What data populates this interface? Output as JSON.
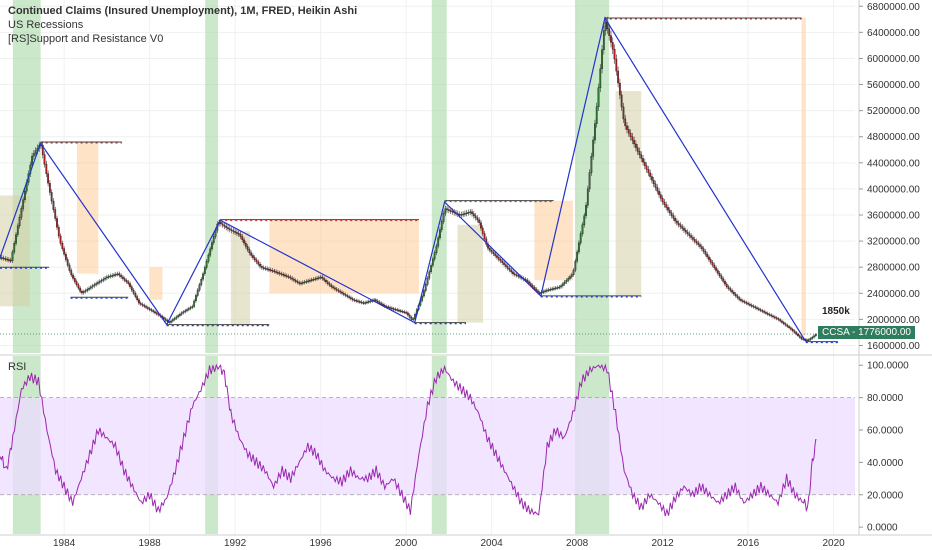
{
  "legend": {
    "title": "Continued Claims (Insured Unemployment), 1M, FRED, Heikin Ashi",
    "line2": "US Recessions",
    "line3": "[RS]Support and Resistance V0"
  },
  "rsi_label": "RSI",
  "annotation": "1850k",
  "price_tag": {
    "symbol": "CCSA",
    "value": "1776000.00"
  },
  "colors": {
    "up": "#2e7d32",
    "down": "#b71c1c",
    "zigzag": "#2233cc",
    "recession": "#a8d8a8",
    "rsi_line": "#9c27b0",
    "rsi_band": "#ecdcff",
    "sr_fill": "#ffcc99",
    "sr_fill2": "#d6cfa6",
    "price_tag": "#2e7d5e"
  },
  "chart_data": [
    {
      "type": "candlestick",
      "title": "Continued Claims (Insured Unemployment), 1M, FRED, Heikin Ashi",
      "price_axis": {
        "ticks": [
          "6800000.00",
          "6400000.00",
          "6000000.00",
          "5600000.00",
          "5200000.00",
          "4800000.00",
          "4400000.00",
          "4000000.00",
          "3600000.00",
          "3200000.00",
          "2800000.00",
          "2400000.00",
          "2000000.00",
          "1600000.00"
        ],
        "ylim": [
          1500000,
          6850000
        ]
      },
      "x_axis": {
        "ticks": [
          "1984",
          "1988",
          "1992",
          "1996",
          "2000",
          "2004",
          "2008",
          "2012",
          "2016",
          "2020"
        ],
        "xlim": [
          1981.0,
          2021.0
        ]
      },
      "close_series": [
        [
          1981.0,
          2950000
        ],
        [
          1981.5,
          2900000
        ],
        [
          1982.0,
          3700000
        ],
        [
          1982.5,
          4500000
        ],
        [
          1982.9,
          4700000
        ],
        [
          1983.3,
          4000000
        ],
        [
          1983.8,
          3200000
        ],
        [
          1984.3,
          2700000
        ],
        [
          1984.8,
          2400000
        ],
        [
          1985.5,
          2550000
        ],
        [
          1986.0,
          2650000
        ],
        [
          1986.5,
          2700000
        ],
        [
          1987.0,
          2550000
        ],
        [
          1987.5,
          2250000
        ],
        [
          1988.0,
          2150000
        ],
        [
          1988.5,
          2050000
        ],
        [
          1988.9,
          1950000
        ],
        [
          1989.5,
          2100000
        ],
        [
          1990.0,
          2200000
        ],
        [
          1990.5,
          2700000
        ],
        [
          1991.2,
          3500000
        ],
        [
          1991.6,
          3400000
        ],
        [
          1992.2,
          3300000
        ],
        [
          1992.7,
          3000000
        ],
        [
          1993.2,
          2800000
        ],
        [
          1993.7,
          2750000
        ],
        [
          1994.5,
          2650000
        ],
        [
          1995.0,
          2550000
        ],
        [
          1995.5,
          2600000
        ],
        [
          1996.0,
          2650000
        ],
        [
          1996.5,
          2500000
        ],
        [
          1997.0,
          2400000
        ],
        [
          1997.5,
          2300000
        ],
        [
          1998.0,
          2250000
        ],
        [
          1998.5,
          2300000
        ],
        [
          1999.0,
          2200000
        ],
        [
          1999.5,
          2150000
        ],
        [
          2000.0,
          2100000
        ],
        [
          2000.3,
          1980000
        ],
        [
          2000.8,
          2400000
        ],
        [
          2001.4,
          3100000
        ],
        [
          2001.8,
          3700000
        ],
        [
          2002.5,
          3600000
        ],
        [
          2003.0,
          3650000
        ],
        [
          2003.4,
          3500000
        ],
        [
          2003.8,
          3100000
        ],
        [
          2004.4,
          2900000
        ],
        [
          2005.0,
          2700000
        ],
        [
          2005.6,
          2600000
        ],
        [
          2006.2,
          2400000
        ],
        [
          2006.6,
          2450000
        ],
        [
          2007.2,
          2500000
        ],
        [
          2007.8,
          2700000
        ],
        [
          2008.4,
          3700000
        ],
        [
          2008.9,
          5200000
        ],
        [
          2009.3,
          6600000
        ],
        [
          2009.7,
          6100000
        ],
        [
          2010.2,
          5000000
        ],
        [
          2010.8,
          4600000
        ],
        [
          2011.4,
          4200000
        ],
        [
          2012.0,
          3800000
        ],
        [
          2012.6,
          3500000
        ],
        [
          2013.2,
          3300000
        ],
        [
          2013.8,
          3100000
        ],
        [
          2014.4,
          2800000
        ],
        [
          2015.0,
          2500000
        ],
        [
          2015.6,
          2300000
        ],
        [
          2016.2,
          2200000
        ],
        [
          2016.8,
          2100000
        ],
        [
          2017.4,
          2000000
        ],
        [
          2018.0,
          1850000
        ],
        [
          2018.5,
          1700000
        ],
        [
          2018.8,
          1680000
        ],
        [
          2019.2,
          1776000
        ]
      ],
      "zigzag": [
        [
          1981.0,
          2950000
        ],
        [
          1982.9,
          4700000
        ],
        [
          1988.8,
          1920000
        ],
        [
          1991.3,
          3520000
        ],
        [
          2000.4,
          1950000
        ],
        [
          2001.8,
          3800000
        ],
        [
          2006.3,
          2360000
        ],
        [
          2009.3,
          6620000
        ],
        [
          2018.7,
          1660000
        ]
      ],
      "recessions": [
        [
          1981.6,
          1982.9
        ],
        [
          1990.6,
          1991.2
        ],
        [
          2001.2,
          2001.9
        ],
        [
          2007.9,
          2009.5
        ]
      ],
      "resistance_levels": [
        {
          "y": 4720000,
          "x1": 1982.9,
          "x2": 1986.7
        },
        {
          "y": 3530000,
          "x1": 1991.3,
          "x2": 2000.6
        },
        {
          "y": 3820000,
          "x1": 2001.8,
          "x2": 2006.9
        },
        {
          "y": 6620000,
          "x1": 2009.3,
          "x2": 2018.5
        }
      ],
      "support_levels": [
        {
          "y": 2800000,
          "x1": 1981.0,
          "x2": 1983.3
        },
        {
          "y": 2340000,
          "x1": 1984.3,
          "x2": 1987.0
        },
        {
          "y": 1920000,
          "x1": 1988.8,
          "x2": 1993.6
        },
        {
          "y": 1950000,
          "x1": 2000.4,
          "x2": 2002.8
        },
        {
          "y": 2360000,
          "x1": 2006.3,
          "x2": 2011.0
        },
        {
          "y": 1660000,
          "x1": 2018.7,
          "x2": 2020.2
        }
      ],
      "sr_zones": [
        {
          "x1": 1981.0,
          "x2": 1982.4,
          "y1": 2200000,
          "y2": 3900000,
          "kind": "2"
        },
        {
          "x1": 1984.6,
          "x2": 1985.6,
          "y1": 2700000,
          "y2": 4720000,
          "kind": "1"
        },
        {
          "x1": 1988.0,
          "x2": 1988.6,
          "y1": 2300000,
          "y2": 2800000,
          "kind": "1"
        },
        {
          "x1": 1991.8,
          "x2": 1992.7,
          "y1": 1920000,
          "y2": 3350000,
          "kind": "2"
        },
        {
          "x1": 1993.6,
          "x2": 2000.6,
          "y1": 2400000,
          "y2": 3530000,
          "kind": "1"
        },
        {
          "x1": 2002.4,
          "x2": 2003.6,
          "y1": 1950000,
          "y2": 3450000,
          "kind": "2"
        },
        {
          "x1": 2006.0,
          "x2": 2007.8,
          "y1": 2600000,
          "y2": 3820000,
          "kind": "1"
        },
        {
          "x1": 2009.8,
          "x2": 2011.0,
          "y1": 2360000,
          "y2": 5500000,
          "kind": "2"
        },
        {
          "x1": 2018.5,
          "x2": 2018.7,
          "y1": 1750000,
          "y2": 6620000,
          "kind": "1"
        }
      ],
      "last_value": 1776000
    },
    {
      "type": "line",
      "title": "RSI",
      "y_axis": {
        "ticks": [
          "100.0000",
          "80.0000",
          "60.0000",
          "40.0000",
          "20.0000",
          "0.0000"
        ],
        "ylim": [
          -3,
          102
        ]
      },
      "band": [
        20,
        80
      ],
      "series": [
        {
          "values": [
            [
              1981.0,
              45
            ],
            [
              1981.3,
              35
            ],
            [
              1981.6,
              55
            ],
            [
              1982.0,
              85
            ],
            [
              1982.4,
              93
            ],
            [
              1982.8,
              90
            ],
            [
              1983.2,
              60
            ],
            [
              1983.6,
              35
            ],
            [
              1984.0,
              25
            ],
            [
              1984.4,
              15
            ],
            [
              1984.8,
              30
            ],
            [
              1985.2,
              45
            ],
            [
              1985.6,
              60
            ],
            [
              1986.0,
              55
            ],
            [
              1986.4,
              50
            ],
            [
              1986.8,
              35
            ],
            [
              1987.2,
              25
            ],
            [
              1987.6,
              15
            ],
            [
              1988.0,
              20
            ],
            [
              1988.4,
              10
            ],
            [
              1988.8,
              18
            ],
            [
              1989.2,
              35
            ],
            [
              1989.6,
              55
            ],
            [
              1990.0,
              75
            ],
            [
              1990.4,
              85
            ],
            [
              1990.8,
              97
            ],
            [
              1991.2,
              100
            ],
            [
              1991.5,
              95
            ],
            [
              1991.8,
              70
            ],
            [
              1992.2,
              55
            ],
            [
              1992.6,
              45
            ],
            [
              1993.0,
              40
            ],
            [
              1993.4,
              35
            ],
            [
              1993.8,
              25
            ],
            [
              1994.2,
              35
            ],
            [
              1994.6,
              30
            ],
            [
              1995.0,
              40
            ],
            [
              1995.4,
              50
            ],
            [
              1995.8,
              45
            ],
            [
              1996.2,
              35
            ],
            [
              1996.6,
              30
            ],
            [
              1997.0,
              28
            ],
            [
              1997.4,
              35
            ],
            [
              1997.8,
              30
            ],
            [
              1998.2,
              30
            ],
            [
              1998.6,
              35
            ],
            [
              1999.0,
              25
            ],
            [
              1999.4,
              30
            ],
            [
              1999.8,
              20
            ],
            [
              2000.2,
              10
            ],
            [
              2000.6,
              45
            ],
            [
              2001.0,
              75
            ],
            [
              2001.4,
              92
            ],
            [
              2001.8,
              98
            ],
            [
              2002.2,
              90
            ],
            [
              2002.6,
              85
            ],
            [
              2003.0,
              80
            ],
            [
              2003.4,
              70
            ],
            [
              2003.8,
              55
            ],
            [
              2004.2,
              45
            ],
            [
              2004.6,
              35
            ],
            [
              2005.0,
              25
            ],
            [
              2005.4,
              15
            ],
            [
              2005.8,
              10
            ],
            [
              2006.2,
              8
            ],
            [
              2006.6,
              50
            ],
            [
              2007.0,
              60
            ],
            [
              2007.4,
              55
            ],
            [
              2007.8,
              70
            ],
            [
              2008.2,
              90
            ],
            [
              2008.6,
              97
            ],
            [
              2009.0,
              100
            ],
            [
              2009.4,
              98
            ],
            [
              2009.8,
              70
            ],
            [
              2010.2,
              35
            ],
            [
              2010.6,
              20
            ],
            [
              2011.0,
              12
            ],
            [
              2011.4,
              20
            ],
            [
              2011.8,
              15
            ],
            [
              2012.2,
              8
            ],
            [
              2012.6,
              18
            ],
            [
              2013.0,
              25
            ],
            [
              2013.4,
              20
            ],
            [
              2013.8,
              25
            ],
            [
              2014.2,
              20
            ],
            [
              2014.6,
              15
            ],
            [
              2015.0,
              20
            ],
            [
              2015.4,
              25
            ],
            [
              2015.8,
              15
            ],
            [
              2016.2,
              20
            ],
            [
              2016.6,
              25
            ],
            [
              2017.0,
              20
            ],
            [
              2017.4,
              15
            ],
            [
              2017.8,
              30
            ],
            [
              2018.2,
              20
            ],
            [
              2018.6,
              15
            ],
            [
              2018.8,
              12
            ],
            [
              2019.0,
              40
            ],
            [
              2019.2,
              54
            ]
          ]
        }
      ]
    }
  ]
}
